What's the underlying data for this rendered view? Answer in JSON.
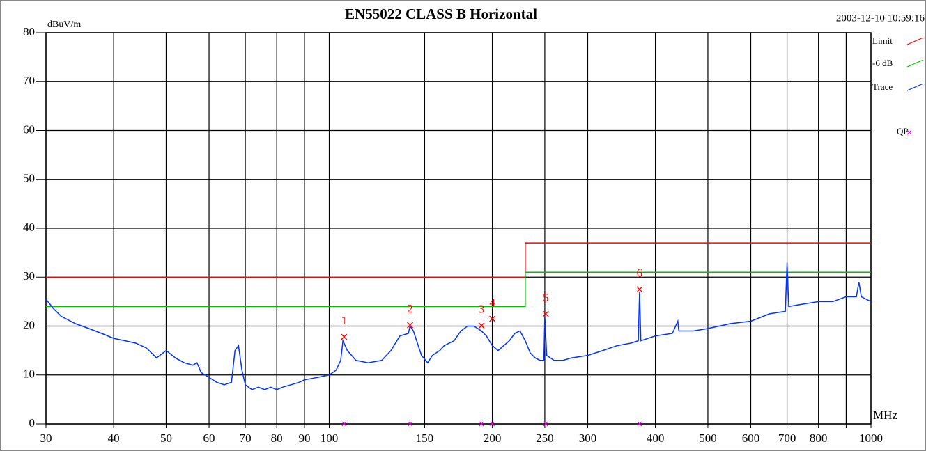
{
  "chart_data": {
    "type": "line",
    "title": "EN55022 CLASS B  Horizontal",
    "timestamp": "2003-12-10 10:59:16",
    "ylabel": "dBuV/m",
    "xlabel": "MHz",
    "xlog": true,
    "grid": true,
    "legend": "right",
    "xlim": [
      30,
      1000
    ],
    "ylim": [
      0,
      80
    ],
    "yticks": [
      0,
      10,
      20,
      30,
      40,
      50,
      60,
      70,
      80
    ],
    "xticks": [
      30,
      40,
      50,
      60,
      70,
      80,
      90,
      100,
      150,
      200,
      250,
      300,
      400,
      500,
      600,
      700,
      800,
      {
        "value": 900,
        "label": null
      },
      1000
    ],
    "series": [
      {
        "name": "Limit",
        "color": "#ff0000",
        "x": [
          30,
          230,
          230,
          1000
        ],
        "values": [
          30,
          30,
          37,
          37
        ]
      },
      {
        "name": "-6 dB",
        "color": "#00c000",
        "x": [
          30,
          230,
          230,
          1000
        ],
        "values": [
          24,
          24,
          31,
          31
        ]
      },
      {
        "name": "Trace",
        "color": "#0033ff",
        "x": [
          30,
          31,
          32,
          34,
          36,
          38,
          40,
          42,
          44,
          46,
          48,
          50,
          52,
          54,
          56,
          57,
          58,
          60,
          62,
          64,
          66,
          67,
          68,
          69,
          70,
          72,
          74,
          76,
          78,
          80,
          82,
          85,
          88,
          90,
          95,
          100,
          103,
          105,
          106,
          108,
          112,
          118,
          125,
          130,
          135,
          140,
          141,
          143,
          148,
          152,
          155,
          160,
          163,
          170,
          175,
          180,
          185,
          191,
          195,
          200,
          205,
          210,
          215,
          220,
          225,
          230,
          235,
          240,
          245,
          249,
          250,
          252,
          260,
          270,
          280,
          300,
          320,
          340,
          360,
          372,
          374,
          376,
          400,
          430,
          440,
          442,
          470,
          500,
          550,
          600,
          650,
          695,
          700,
          705,
          750,
          800,
          850,
          900,
          940,
          950,
          960,
          1000
        ],
        "values": [
          25.5,
          23.5,
          22,
          20.5,
          19.5,
          18.5,
          17.5,
          17,
          16.5,
          15.5,
          13.5,
          15,
          13.5,
          12.5,
          12,
          12.5,
          10.5,
          9.5,
          8.5,
          8,
          8.5,
          15,
          16,
          11,
          8,
          7,
          7.5,
          7,
          7.5,
          7,
          7.5,
          8,
          8.5,
          9,
          9.5,
          10,
          11,
          13,
          17,
          15,
          13,
          12.5,
          13,
          15,
          18,
          18.5,
          20,
          19,
          14,
          12.5,
          14,
          15,
          16,
          17,
          19,
          20,
          20,
          19,
          18,
          16,
          15,
          16,
          17,
          18.5,
          19,
          17,
          14.5,
          13.5,
          13,
          13,
          22,
          14,
          13,
          13,
          13.5,
          14,
          15,
          16,
          16.5,
          17,
          27,
          17,
          18,
          18.5,
          21,
          19,
          19,
          19.5,
          20.5,
          21,
          22.5,
          23,
          33,
          24,
          24.5,
          25,
          25,
          26,
          26,
          29,
          26,
          25
        ]
      },
      {
        "name": "QP",
        "color": "#ff00ff",
        "markers": true,
        "x": [
          106.5,
          141,
          191,
          200,
          251,
          374
        ],
        "values": [
          0,
          0,
          0,
          0,
          0,
          0
        ]
      }
    ],
    "peaks": {
      "color": "#ff0000",
      "labels": [
        "1",
        "2",
        "3",
        "4",
        "5",
        "6"
      ],
      "x": [
        106.5,
        141,
        191,
        200,
        251,
        374
      ],
      "values": [
        17.8,
        20.2,
        20.1,
        21.5,
        22.5,
        27.5
      ]
    }
  }
}
